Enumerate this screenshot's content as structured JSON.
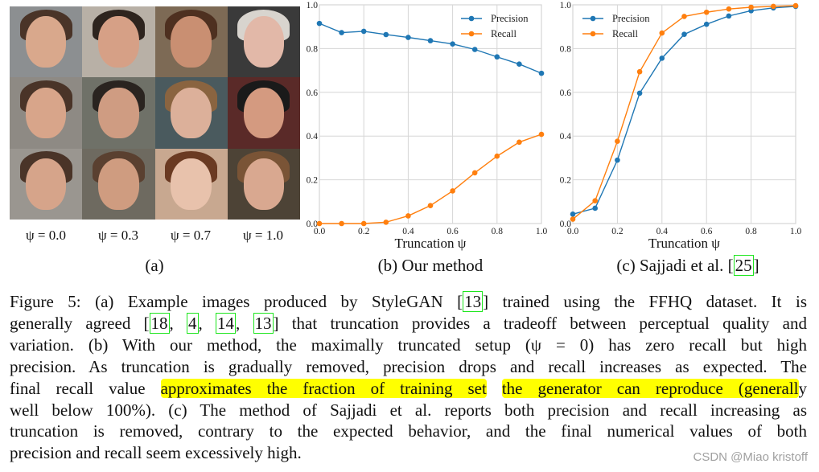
{
  "panel_a": {
    "psi_labels": [
      "ψ = 0.0",
      "ψ = 0.3",
      "ψ = 0.7",
      "ψ = 1.0"
    ],
    "subcaption": "(a)"
  },
  "panel_b": {
    "subcaption": "(b) Our method"
  },
  "panel_c": {
    "subcaption_prefix": "(c) Sajjadi et al. [",
    "subcaption_cite": "25",
    "subcaption_suffix": "]"
  },
  "chart_data": [
    {
      "type": "line",
      "xlabel": "Truncation ψ",
      "ylabel": "",
      "xlim": [
        0,
        1
      ],
      "ylim": [
        0,
        1
      ],
      "xticks": [
        "0.0",
        "0.2",
        "0.4",
        "0.6",
        "0.8",
        "1.0"
      ],
      "yticks": [
        "0.0",
        "0.2",
        "0.4",
        "0.6",
        "0.8",
        "1.0"
      ],
      "grid": true,
      "legend": "top-right",
      "x": [
        0,
        0.1,
        0.2,
        0.3,
        0.4,
        0.5,
        0.6,
        0.7,
        0.8,
        0.9,
        1.0
      ],
      "series": [
        {
          "name": "Precision",
          "color": "#1f77b4",
          "values": [
            0.915,
            0.873,
            0.879,
            0.864,
            0.851,
            0.836,
            0.821,
            0.796,
            0.762,
            0.729,
            0.687
          ]
        },
        {
          "name": "Recall",
          "color": "#ff7f0e",
          "values": [
            0.0,
            0.0,
            0.0,
            0.006,
            0.035,
            0.082,
            0.149,
            0.232,
            0.308,
            0.372,
            0.408
          ]
        }
      ]
    },
    {
      "type": "line",
      "xlabel": "Truncation ψ",
      "ylabel": "",
      "xlim": [
        0,
        1
      ],
      "ylim": [
        0,
        1
      ],
      "xticks": [
        "0.0",
        "0.2",
        "0.4",
        "0.6",
        "0.8",
        "1.0"
      ],
      "yticks": [
        "0.0",
        "0.2",
        "0.4",
        "0.6",
        "0.8",
        "1.0"
      ],
      "grid": true,
      "legend": "top-left",
      "x": [
        0,
        0.1,
        0.2,
        0.3,
        0.4,
        0.5,
        0.6,
        0.7,
        0.8,
        0.9,
        1.0
      ],
      "series": [
        {
          "name": "Precision",
          "color": "#1f77b4",
          "values": [
            0.043,
            0.07,
            0.29,
            0.596,
            0.756,
            0.865,
            0.911,
            0.949,
            0.973,
            0.986,
            0.993
          ]
        },
        {
          "name": "Recall",
          "color": "#ff7f0e",
          "values": [
            0.02,
            0.104,
            0.376,
            0.694,
            0.871,
            0.947,
            0.966,
            0.981,
            0.989,
            0.993,
            0.996
          ]
        }
      ]
    }
  ],
  "caption": {
    "lines": [
      [
        {
          "t": "Figure 5: (a) Example images produced by StyleGAN ["
        },
        {
          "t": "13",
          "cite": true
        },
        {
          "t": "] trained using the FFHQ dataset. It is"
        }
      ],
      [
        {
          "t": "generally agreed ["
        },
        {
          "t": "18",
          "cite": true
        },
        {
          "t": ", "
        },
        {
          "t": "4",
          "cite": true
        },
        {
          "t": ", "
        },
        {
          "t": "14",
          "cite": true
        },
        {
          "t": ", "
        },
        {
          "t": "13",
          "cite": true
        },
        {
          "t": "] that truncation provides a tradeoff between perceptual quality and"
        }
      ],
      [
        {
          "t": "variation. (b) With our method, the maximally truncated setup (ψ = 0) has zero recall but high"
        }
      ],
      [
        {
          "t": "precision. As truncation is gradually removed, precision drops and recall increases as expected. The"
        }
      ],
      [
        {
          "t": "final recall value "
        },
        {
          "t": "approximates the fraction of training set",
          "hl": true
        },
        {
          "t": " "
        },
        {
          "t": "the generator can reproduce (generall",
          "hl": true
        },
        {
          "t": "y"
        }
      ],
      [
        {
          "t": "well below 100%). (c) The method of Sajjadi et al. reports both precision and recall increasing as"
        }
      ],
      [
        {
          "t": "truncation is removed, contrary to the expected behavior, and the final numerical values of both"
        }
      ],
      [
        {
          "t": "precision and recall seem excessively high."
        }
      ]
    ],
    "highlight_color": "#ffff00",
    "cite_color": "#1ee61e"
  },
  "watermark": "CSDN @Miao kristoff"
}
